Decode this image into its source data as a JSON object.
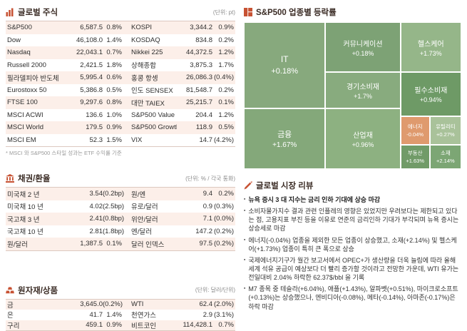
{
  "colors": {
    "accent": "#c75233",
    "section_title": "#3a2b24",
    "row_stripe": "#fcefe9",
    "energy_negative": "#df9a6e"
  },
  "global_stocks": {
    "title": "글로벌 주식",
    "unit": "(단위: pt)",
    "footnote": "* MSCI 와 S&P500 스타일 성과는 ETF 수익률 기준",
    "rows": [
      [
        "S&P500",
        "6,587.5",
        "0.8%",
        "KOSPI",
        "3,344.2",
        "0.9%"
      ],
      [
        "Dow",
        "46,108.0",
        "1.4%",
        "KOSDAQ",
        "834.8",
        "0.2%"
      ],
      [
        "Nasdaq",
        "22,043.1",
        "0.7%",
        "Nikkei 225",
        "44,372.5",
        "1.2%"
      ],
      [
        "Russell 2000",
        "2,421.5",
        "1.8%",
        "상해종합",
        "3,875.3",
        "1.7%"
      ],
      [
        "필라델피아 반도체",
        "5,995.4",
        "0.6%",
        "홍콩 항셍",
        "26,086.3",
        "(0.4%)"
      ],
      [
        "Eurostoxx 50",
        "5,386.8",
        "0.5%",
        "인도 SENSEX",
        "81,548.7",
        "0.2%"
      ],
      [
        "FTSE 100",
        "9,297.6",
        "0.8%",
        "대만 TAIEX",
        "25,215.7",
        "0.1%"
      ],
      [
        "MSCI ACWI",
        "136.6",
        "1.0%",
        "S&P500 Value",
        "204.4",
        "1.2%"
      ],
      [
        "MSCI World",
        "179.5",
        "0.9%",
        "S&P500 Growth",
        "118.9",
        "0.5%"
      ],
      [
        "MSCI EM",
        "52.3",
        "1.5%",
        "VIX",
        "14.7",
        "(4.2%)"
      ]
    ]
  },
  "bonds_fx": {
    "title": "채권/환율",
    "unit": "(단위: % / 각국 통화)",
    "rows": [
      [
        "미국채 2 년",
        "3.54",
        "(0.2bp)",
        "원/엔",
        "9.4",
        "0.2%"
      ],
      [
        "미국채 10 년",
        "4.02",
        "(2.5bp)",
        "유로/달러",
        "0.9",
        "(0.3%)"
      ],
      [
        "국고채 3 년",
        "2.41",
        "(0.8bp)",
        "위안/달러",
        "7.1",
        "(0.0%)"
      ],
      [
        "국고채 10 년",
        "2.81",
        "(1.8bp)",
        "엔/달러",
        "147.2",
        "(0.2%)"
      ],
      [
        "원/달러",
        "1,387.5",
        "0.1%",
        "달러 인덱스",
        "97.5",
        "(0.2%)"
      ]
    ]
  },
  "commodities": {
    "title": "원자재/상품",
    "unit": "(단위: 달러/단위)",
    "rows": [
      [
        "금",
        "3,645.0",
        "(0.2%)",
        "WTI",
        "62.4",
        "(2.0%)"
      ],
      [
        "은",
        "41.7",
        "1.4%",
        "천연가스",
        "2.9",
        "(3.1%)"
      ],
      [
        "구리",
        "459.1",
        "0.9%",
        "비트코인",
        "114,428.1",
        "0.7%"
      ]
    ]
  },
  "sector_map": {
    "title": "S&P500 업종별 등락률",
    "type": "treemap",
    "sectors": [
      {
        "label": "IT",
        "change": "+0.18%",
        "color": "#87a97d"
      },
      {
        "label": "커뮤니케이션",
        "change": "+0.18%",
        "color": "#7da275"
      },
      {
        "label": "헬스케어",
        "change": "+1.73%",
        "color": "#95b689"
      },
      {
        "label": "경기소비재",
        "change": "+1.7%",
        "color": "#88ab7e"
      },
      {
        "label": "필수소비재",
        "change": "+0.94%",
        "color": "#6e9a66"
      },
      {
        "label": "금융",
        "change": "+1.67%",
        "color": "#84a87a"
      },
      {
        "label": "산업재",
        "change": "+0.96%",
        "color": "#8db181"
      },
      {
        "label": "에너지",
        "change": "-0.04%",
        "color": "#df9a6e"
      },
      {
        "label": "유틸리티",
        "change": "+0.27%",
        "color": "#a9c29a"
      },
      {
        "label": "부동산",
        "change": "+1.63%",
        "color": "#719b68"
      },
      {
        "label": "소재",
        "change": "+2.14%",
        "color": "#7ca674"
      }
    ]
  },
  "review": {
    "title": "글로벌 시장 리뷰",
    "bullets": [
      "뉴욕 증시 3 대 지수는 금리 인하 기대에 상승 마감",
      "소비자물가지수 결과 관련 인플레의 영향은 있었지만 우려보다는 제한되고 있다는 점, 고용지표 부진 등을 이유로 연준의 금리인하 기대가 부각되며 뉴욕 증시는 상승세로 마감",
      "에너지(-0.04%) 업종을 제외한 모든 업종이 상승했고, 소재(+2.14%) 및 헬스케어(+1.73%) 업종이 특히 큰 폭으로 상승",
      "국제에너지기구가 월간 보고서에서 OPEC+가 생산량을 더욱 늘림에 따라 올해 세계 석유 공급이 예상보다 더 빨리 증가할 것이라고 전망한 가운데, WTI 유가는 전일대비 2.04% 하락한 62.37$/bbl 을 기록",
      "M7 종목 중 테슬라(+6.04%), 애플(+1.43%), 알파벳(+0.51%), 마이크로소프트(+0.13%)는 상승했으나, 엔비디아(-0.08%), 메타(-0.14%), 아마존(-0.17%)은 하락 마감"
    ]
  }
}
